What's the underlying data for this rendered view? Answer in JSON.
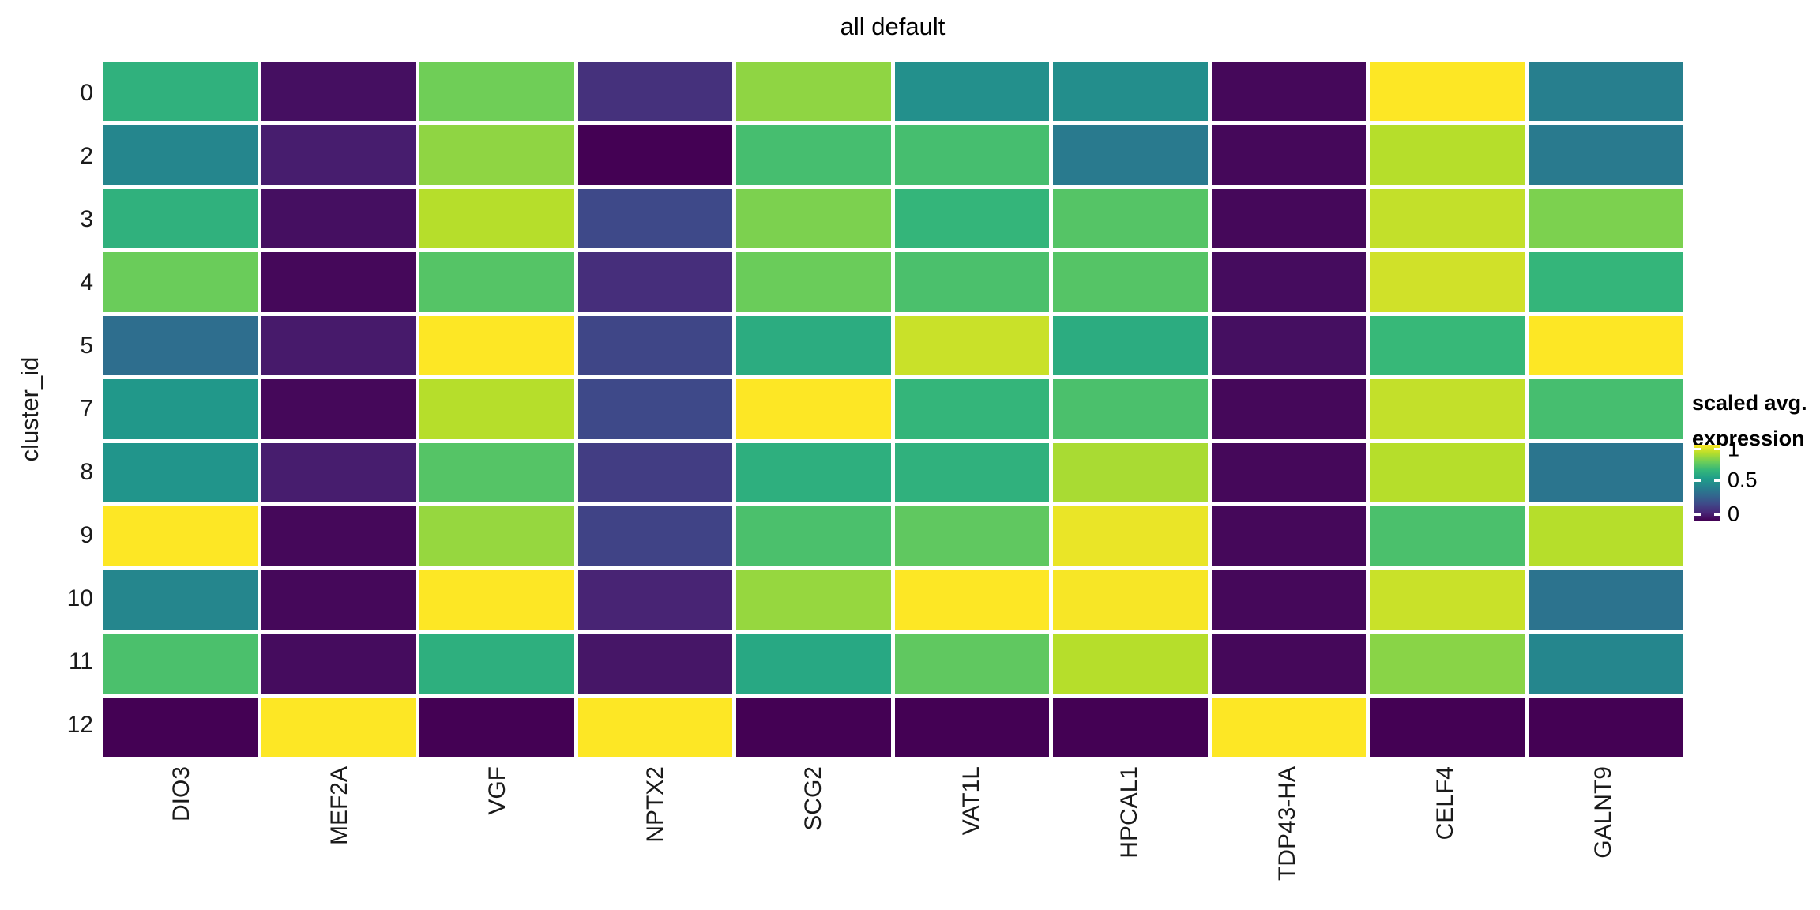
{
  "title": "all default",
  "y_axis": {
    "title": "cluster_id",
    "labels": [
      "0",
      "2",
      "3",
      "4",
      "5",
      "7",
      "8",
      "9",
      "10",
      "11",
      "12"
    ]
  },
  "x_axis": {
    "labels": [
      "DIO3",
      "MEF2A",
      "VGF",
      "NPTX2",
      "SCG2",
      "VAT1L",
      "HPCAL1",
      "TDP43-HA",
      "CELF4",
      "GALNT9"
    ]
  },
  "legend": {
    "title_line1": "scaled avg.",
    "title_line2": "expression",
    "tick_labels": [
      "1",
      "0.5",
      "0"
    ]
  },
  "colors": {
    "background": "#ffffff",
    "viridis_min": "#440154",
    "viridis_mid": "#21918c",
    "viridis_max": "#fde725",
    "cell_gap": "#ffffff",
    "text": "#1a1a1a"
  },
  "chart_data": {
    "type": "heatmap",
    "title": "all default",
    "xlabel": "",
    "ylabel": "cluster_id",
    "colormap": "viridis",
    "legend_title": "scaled avg. expression",
    "legend_ticks": [
      1,
      0.5,
      0
    ],
    "value_range": [
      0,
      1
    ],
    "x_categories": [
      "DIO3",
      "MEF2A",
      "VGF",
      "NPTX2",
      "SCG2",
      "VAT1L",
      "HPCAL1",
      "TDP43-HA",
      "CELF4",
      "GALNT9"
    ],
    "y_categories": [
      "0",
      "2",
      "3",
      "4",
      "5",
      "7",
      "8",
      "9",
      "10",
      "11",
      "12"
    ],
    "values": [
      [
        0.64,
        0.04,
        0.78,
        0.14,
        0.83,
        0.5,
        0.49,
        0.02,
        1.0,
        0.43
      ],
      [
        0.46,
        0.08,
        0.83,
        0.0,
        0.7,
        0.7,
        0.41,
        0.02,
        0.89,
        0.41
      ],
      [
        0.64,
        0.04,
        0.89,
        0.22,
        0.8,
        0.66,
        0.73,
        0.02,
        0.91,
        0.8
      ],
      [
        0.77,
        0.02,
        0.73,
        0.13,
        0.77,
        0.71,
        0.73,
        0.03,
        0.93,
        0.66
      ],
      [
        0.36,
        0.07,
        1.0,
        0.21,
        0.62,
        0.92,
        0.62,
        0.04,
        0.67,
        1.0
      ],
      [
        0.53,
        0.02,
        0.89,
        0.22,
        1.0,
        0.66,
        0.71,
        0.02,
        0.91,
        0.7
      ],
      [
        0.52,
        0.08,
        0.73,
        0.18,
        0.63,
        0.64,
        0.87,
        0.02,
        0.89,
        0.39
      ],
      [
        1.0,
        0.02,
        0.84,
        0.2,
        0.71,
        0.75,
        0.97,
        0.02,
        0.71,
        0.89
      ],
      [
        0.46,
        0.02,
        1.0,
        0.1,
        0.84,
        1.0,
        0.99,
        0.02,
        0.92,
        0.38
      ],
      [
        0.71,
        0.03,
        0.63,
        0.06,
        0.6,
        0.75,
        0.89,
        0.02,
        0.82,
        0.46
      ],
      [
        0.0,
        1.0,
        0.0,
        1.0,
        0.0,
        0.0,
        0.0,
        1.0,
        0.0,
        0.0
      ]
    ]
  }
}
